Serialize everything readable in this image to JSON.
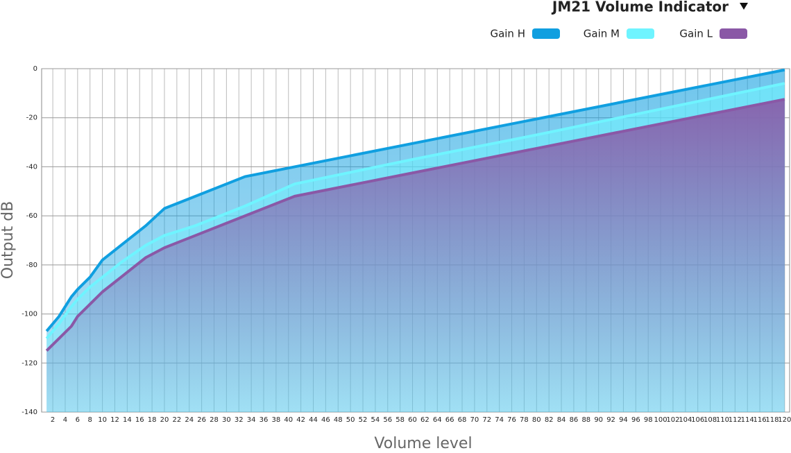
{
  "chart_data": {
    "type": "area",
    "title": "JM21 Volume Indicator",
    "x_label": "Volume level",
    "y_label": "Output dB",
    "x": [
      1,
      3,
      5,
      6,
      8,
      10,
      13,
      17,
      20,
      25,
      30,
      33,
      41,
      60,
      80,
      100,
      120
    ],
    "series": [
      {
        "name": "Gain H",
        "color": "#109fe0",
        "values": [
          -107,
          -101,
          -93,
          -90,
          -85,
          -78,
          -72,
          -64,
          -57,
          -52,
          -47,
          -44,
          -40,
          -30.5,
          -20.5,
          -10.5,
          -0.5
        ]
      },
      {
        "name": "Gain M",
        "color": "#6ff4ff",
        "values": [
          -110,
          -104,
          -97,
          -94,
          -89,
          -85,
          -79,
          -72,
          -68,
          -64,
          -59,
          -56,
          -47,
          -37,
          -27,
          -16.5,
          -6
        ]
      },
      {
        "name": "Gain L",
        "color": "#8a58a6",
        "values": [
          -115,
          -110,
          -105,
          -101,
          -96,
          -91,
          -85,
          -77,
          -73,
          -68,
          -63,
          -60,
          -52,
          -42.5,
          -32.5,
          -22.5,
          -12.5
        ]
      }
    ],
    "xlim": [
      0.2,
      120.8
    ],
    "xticks": [
      2,
      4,
      6,
      8,
      10,
      12,
      14,
      16,
      18,
      20,
      22,
      24,
      26,
      28,
      30,
      32,
      34,
      36,
      38,
      40,
      42,
      44,
      46,
      48,
      50,
      52,
      54,
      56,
      58,
      60,
      62,
      64,
      66,
      68,
      70,
      72,
      74,
      76,
      78,
      80,
      82,
      84,
      86,
      88,
      90,
      92,
      94,
      96,
      98,
      100,
      102,
      104,
      106,
      108,
      110,
      112,
      114,
      116,
      118,
      120
    ],
    "ylim": [
      -140,
      0
    ],
    "yticks": [
      0,
      -20,
      -40,
      -60,
      -80,
      -100,
      -120,
      -140
    ],
    "grid": true
  }
}
